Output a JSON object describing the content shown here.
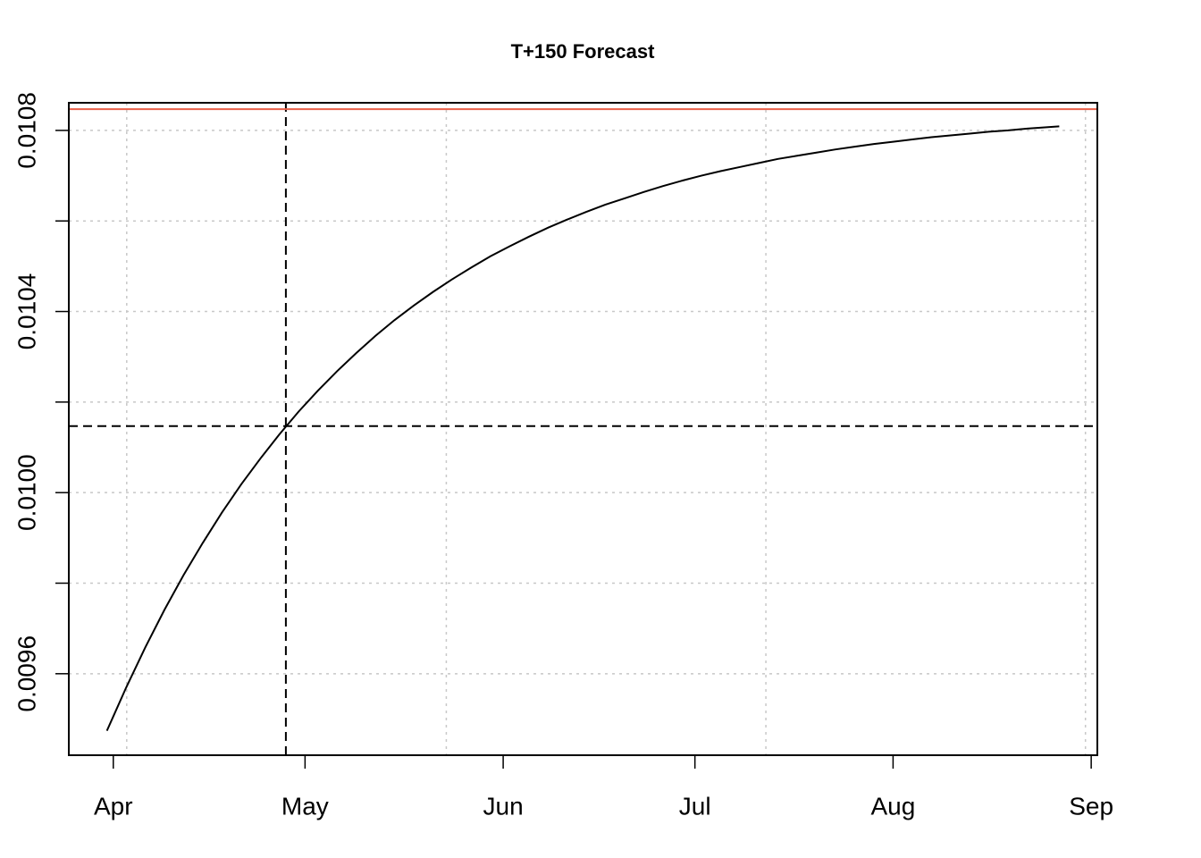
{
  "chart_data": {
    "type": "line",
    "title": "T+150 Forecast",
    "x": [
      -1,
      2,
      5,
      8,
      11,
      14,
      17,
      20,
      23,
      26,
      29,
      32,
      35,
      38,
      41,
      44,
      47,
      50,
      53,
      56,
      59,
      62,
      65,
      68,
      71,
      74,
      77,
      80,
      83,
      86,
      89,
      92,
      95,
      98,
      101,
      104,
      107,
      110,
      113,
      116,
      119,
      122,
      125,
      128,
      131,
      134,
      137,
      140,
      143,
      146,
      148
    ],
    "values": [
      0.009474,
      0.009569,
      0.009658,
      0.009741,
      0.009818,
      0.009889,
      0.009956,
      0.010018,
      0.010075,
      0.010129,
      0.010179,
      0.010225,
      0.010268,
      0.010308,
      0.010346,
      0.010381,
      0.010413,
      0.010443,
      0.010471,
      0.010497,
      0.010522,
      0.010544,
      0.010565,
      0.010585,
      0.010603,
      0.01062,
      0.010636,
      0.01065,
      0.010664,
      0.010677,
      0.010689,
      0.0107,
      0.01071,
      0.010719,
      0.010728,
      0.010737,
      0.010744,
      0.010751,
      0.010758,
      0.010764,
      0.01077,
      0.010775,
      0.01078,
      0.010785,
      0.010789,
      0.010793,
      0.010797,
      0.0108,
      0.010804,
      0.010807,
      0.010809
    ],
    "color": "#000000",
    "xlim": [
      -6.96,
      153.96
    ],
    "xticks": [
      {
        "value": 0,
        "label": "Apr"
      },
      {
        "value": 30,
        "label": "May"
      },
      {
        "value": 61,
        "label": "Jun"
      },
      {
        "value": 91,
        "label": "Jul"
      },
      {
        "value": 122,
        "label": "Aug"
      },
      {
        "value": 153,
        "label": "Sep"
      }
    ],
    "xgrid": [
      2.1,
      52.1,
      102.1,
      152.1
    ],
    "ylim": [
      0.00942,
      0.010861
    ],
    "yticks": [
      {
        "value": 0.0096,
        "label": "0.0096"
      },
      {
        "value": 0.0098,
        "label": null
      },
      {
        "value": 0.01,
        "label": "0.0100"
      },
      {
        "value": 0.0102,
        "label": null
      },
      {
        "value": 0.0104,
        "label": "0.0104"
      },
      {
        "value": 0.0106,
        "label": null
      },
      {
        "value": 0.0108,
        "label": "0.0108"
      }
    ],
    "grid": true,
    "reference_lines": [
      {
        "axis": "x",
        "value": 27,
        "color": "#000000",
        "dashed": true
      },
      {
        "axis": "y",
        "value": 0.010147,
        "color": "#000000",
        "dashed": true
      },
      {
        "axis": "y",
        "value": 0.010847,
        "color": "#e8604a",
        "dashed": false
      }
    ]
  }
}
